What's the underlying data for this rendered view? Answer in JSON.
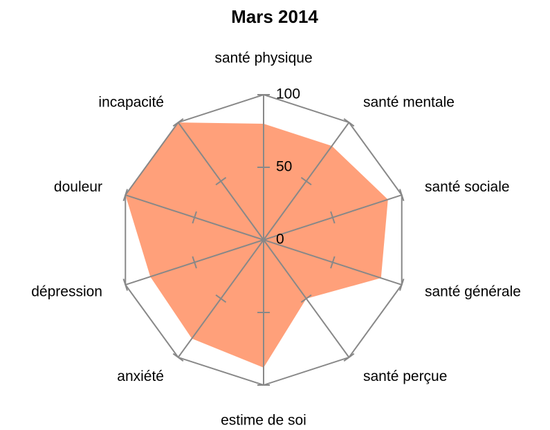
{
  "chart_data": {
    "type": "radar",
    "title": "Mars 2014",
    "categories": [
      "santé physique",
      "santé mentale",
      "santé sociale",
      "santé générale",
      "santé perçue",
      "estime de soi",
      "anxiété",
      "dépression",
      "douleur",
      "incapacité"
    ],
    "values": [
      80,
      80,
      90,
      85,
      50,
      88,
      84,
      82,
      100,
      100
    ],
    "color": "#ffa07a",
    "rlim": [
      0,
      100
    ],
    "rticks": [
      0,
      50,
      100
    ]
  }
}
